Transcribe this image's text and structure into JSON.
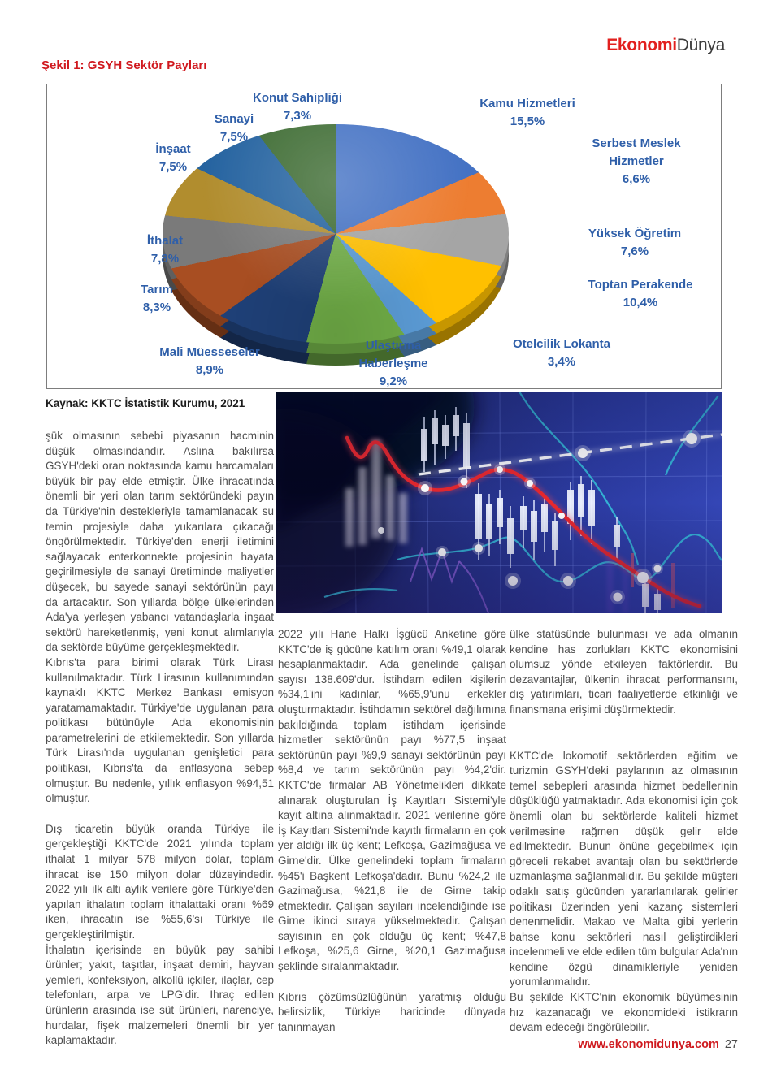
{
  "page": {
    "logo": {
      "part1": "Ekonomi",
      "part2": "Dünya"
    },
    "figure_title": "Şekil 1: GSYH Sektör Payları",
    "source_caption": "Kaynak: KKTC İstatistik Kurumu, 2021",
    "footer": {
      "url": "www.ekonomidunya.com",
      "page_number": "27"
    }
  },
  "chart_data": {
    "type": "pie",
    "style": "3d",
    "title": "Şekil 1: GSYH Sektör Payları",
    "source": "Kaynak: KKTC İstatistik Kurumu, 2021",
    "unit": "%",
    "start_angle_deg": 0,
    "direction": "clockwise",
    "label_color": "#2f5fa9",
    "slices": [
      {
        "id": "kamu",
        "label": "Kamu Hizmetleri",
        "label_lines": [
          "Kamu Hizmetleri"
        ],
        "value": 15.5,
        "display": "15,5%",
        "color": "#4472C4"
      },
      {
        "id": "serbest",
        "label": "Serbest Meslek Hizmetler",
        "label_lines": [
          "Serbest Meslek",
          "Hizmetler"
        ],
        "value": 6.6,
        "display": "6,6%",
        "color": "#ED7D31"
      },
      {
        "id": "yuksek",
        "label": "Yüksek Öğretim",
        "label_lines": [
          "Yüksek Öğretim"
        ],
        "value": 7.6,
        "display": "7,6%",
        "color": "#A5A5A5"
      },
      {
        "id": "toptan",
        "label": "Toptan Perakende",
        "label_lines": [
          "Toptan Perakende"
        ],
        "value": 10.4,
        "display": "10,4%",
        "color": "#FFC000"
      },
      {
        "id": "otelcilik",
        "label": "Otelcilik Lokanta",
        "label_lines": [
          "Otelcilik Lokanta"
        ],
        "value": 3.4,
        "display": "3,4%",
        "color": "#5B9BD5"
      },
      {
        "id": "ulastirma",
        "label": "Ulaştırma Haberleşme",
        "label_lines": [
          "Ulaştırma",
          "Haberleşme"
        ],
        "value": 9.2,
        "display": "9,2%",
        "color": "#70AD47"
      },
      {
        "id": "mali",
        "label": "Mali Müesseseler",
        "label_lines": [
          "Mali Müesseseler"
        ],
        "value": 8.9,
        "display": "8,9%",
        "color": "#1F4077"
      },
      {
        "id": "tarim",
        "label": "Tarım",
        "label_lines": [
          "Tarım"
        ],
        "value": 8.3,
        "display": "8,3%",
        "color": "#A84E22"
      },
      {
        "id": "ithalat",
        "label": "İthalat",
        "label_lines": [
          "İthalat"
        ],
        "value": 7.8,
        "display": "7,8%",
        "color": "#7A7A7A"
      },
      {
        "id": "insaat",
        "label": "İnşaat",
        "label_lines": [
          "İnşaat"
        ],
        "value": 7.5,
        "display": "7,5%",
        "color": "#B18D2E"
      },
      {
        "id": "sanayi",
        "label": "Sanayi",
        "label_lines": [
          "Sanayi"
        ],
        "value": 7.5,
        "display": "7,5%",
        "color": "#2563A0"
      },
      {
        "id": "konut",
        "label": "Konut Sahipliği",
        "label_lines": [
          "Konut Sahipliği"
        ],
        "value": 7.3,
        "display": "7,3%",
        "color": "#3E6C33"
      }
    ]
  },
  "article": {
    "columns": [
      {
        "paragraphs": [
          {
            "gap": 0,
            "text": "şük olmasının sebebi piyasanın hacminin düşük olmasındandır. Aslına bakılırsa GSYH'deki oran noktasında kamu harcamaları büyük bir pay elde etmiştir. Ülke ihracatında önemli bir yeri olan tarım sektöründeki payın da Türkiye'nin destekleriyle tamamlanacak su temin projesiyle daha yukarılara çıkacağı öngörülmektedir. Türkiye'den enerji iletimini sağlayacak enterkonnekte projesinin hayata geçirilmesiyle de sanayi üretiminde maliyetler düşecek, bu sayede sanayi sektörünün payı da artacaktır. Son yıllarda bölge ülkelerinden Ada'ya yerleşen yabancı vatandaşlarla inşaat sektörü hareketlenmiş, yeni konut alımlarıyla da sektörde büyüme gerçekleşmektedir."
          },
          {
            "gap": 0,
            "text": "Kıbrıs'ta para birimi olarak Türk Lirası kullanılmaktadır. Türk Lirasının kullanımından kaynaklı KKTC Merkez Bankası emisyon yaratamamaktadır. Türkiye'de uygulanan para politikası bütünüyle Ada ekonomisinin parametrelerini de etkilemektedir. Son yıllarda Türk Lirası'nda uygulanan genişletici para politikası, Kıbrıs'ta da enflasyona sebep olmuştur. Bu nedenle, yıllık enflasyon %94,51 olmuştur."
          },
          {
            "gap": 1,
            "text": "Dış ticaretin büyük oranda Türkiye ile gerçekleştiği KKTC'de 2021 yılında toplam ithalat 1 milyar 578 milyon dolar, toplam ihracat ise 150 milyon dolar düzeyindedir. 2022 yılı ilk altı aylık verilere göre Türkiye'den yapılan ithalatın toplam ithalattaki oranı %69 iken, ihracatın ise %55,6'sı Türkiye ile gerçekleştirilmiştir."
          },
          {
            "gap": 0,
            "text": "İthalatın içerisinde en büyük pay sahibi ürünler; yakıt, taşıtlar, inşaat demiri, hayvan yemleri, konfeksiyon, alkollü içkiler, ilaçlar, cep telefonları, arpa ve LPG'dir. İhraç edilen ürünlerin arasında ise süt ürünleri, narenciye, hurdalar, fişek malzemeleri önemli bir yer kaplamaktadır."
          }
        ]
      },
      {
        "paragraphs": [
          {
            "gap": 0,
            "text": "2022 yılı Hane Halkı İşgücü Anketine göre KKTC'de iş gücüne katılım oranı %49,1 olarak hesaplanmaktadır. Ada genelinde çalışan sayısı 138.609'dur. İstihdam edilen kişilerin %34,1'ini kadınlar, %65,9'unu erkekler oluşturmaktadır. İstihdamın sektörel dağılımına bakıldığında toplam istihdam içerisinde hizmetler sektörünün payı %77,5 inşaat sektörünün payı %9,9 sanayi sektörünün payı %8,4 ve tarım sektörünün payı %4,2'dir. KKTC'de firmalar AB Yönetmelikleri dikkate alınarak oluşturulan İş Kayıtları Sistemi'yle kayıt altına alınmaktadır. 2021 verilerine göre İş Kayıtları Sistemi'nde kayıtlı firmaların en çok yer aldığı ilk üç kent; Lefkoşa, Gazimağusa ve Girne'dir. Ülke genelindeki toplam firmaların %45'i Başkent Lefkoşa'dadır. Bunu %24,2 ile Gazimağusa, %21,8 ile de Girne takip etmektedir. Çalışan sayıları incelendiğinde ise Girne ikinci sıraya yükselmektedir. Çalışan sayısının en çok olduğu üç kent; %47,8 Lefkoşa, %25,6 Girne, %20,1 Gazimağusa şeklinde sıralanmaktadır."
          },
          {
            "gap": 1,
            "text": "Kıbrıs çözümsüzlüğünün yaratmış olduğu belirsizlik, Türkiye haricinde dünyada tanınmayan"
          }
        ]
      },
      {
        "paragraphs": [
          {
            "gap": 0,
            "text": "ülke statüsünde bulunması ve ada olmanın kendine has zorlukları KKTC ekonomisini olumsuz yönde etkileyen faktörlerdir. Bu dezavantajlar, ülkenin ihracat performansını, dış yatırımları, ticari faaliyetlerde etkinliği ve finansmana erişimi düşürmektedir."
          },
          {
            "gap": 2,
            "text": "KKTC'de lokomotif sektörlerden eğitim ve turizmin GSYH'deki paylarının az olmasının temel sebepleri arasında hizmet bedellerinin düşüklüğü yatmaktadır. Ada ekonomisi için çok önemli olan bu sektörlerde kaliteli hizmet verilmesine rağmen düşük gelir elde edilmektedir. Bunun önüne geçebilmek için göreceli rekabet avantajı olan bu sektörlerde uzmanlaşma sağlanmalıdır. Bu şekilde müşteri odaklı satış gücünden yararlanılarak gelirler politikası üzerinden yeni kazanç sistemleri denenmelidir. Makao ve Malta gibi yerlerin bahse konu sektörleri nasıl geliştirdikleri incelenmeli ve elde edilen tüm bulgular Ada'nın kendine özgü dinamikleriyle yeniden yorumlanmalıdır."
          },
          {
            "gap": 0,
            "text": "Bu şekilde KKTC'nin ekonomik büyümesinin hız kazanacağı ve ekonomideki istikrarın devam edeceği öngörülebilir."
          }
        ]
      }
    ]
  }
}
